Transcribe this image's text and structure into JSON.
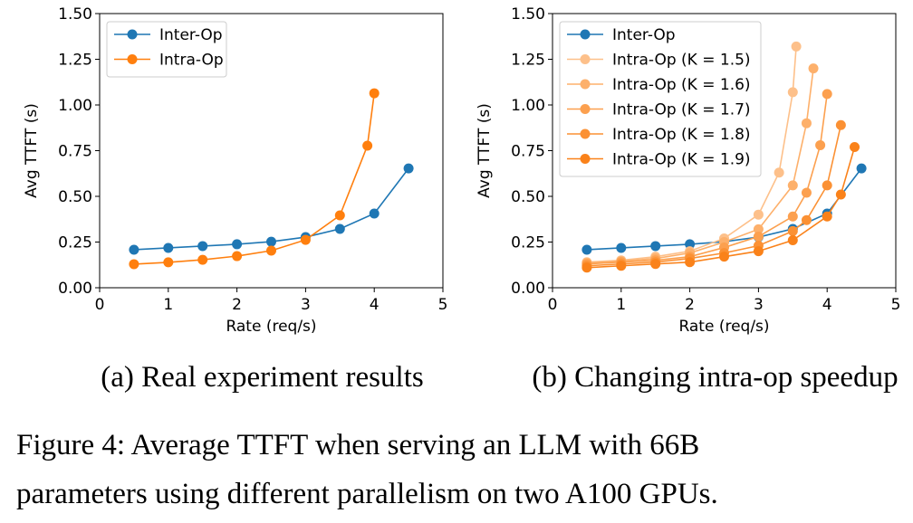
{
  "chart_data": [
    {
      "type": "line",
      "caption": "(a) Real experiment results",
      "xlabel": "Rate (req/s)",
      "ylabel": "Avg TTFT (s)",
      "xlim": [
        0,
        5
      ],
      "xticks": [
        0,
        1,
        2,
        3,
        4,
        5
      ],
      "ylim": [
        0,
        1.5
      ],
      "yticks": [
        {
          "value": 0,
          "label": "0.00"
        },
        {
          "value": 0.25,
          "label": "0.25"
        },
        {
          "value": 0.5,
          "label": "0.50"
        },
        {
          "value": 0.75,
          "label": "0.75"
        },
        {
          "value": 1,
          "label": "1.00"
        },
        {
          "value": 1.25,
          "label": "1.25"
        },
        {
          "value": 1.5,
          "label": "1.50"
        }
      ],
      "legend": "upper left",
      "series": [
        {
          "name": "Inter-Op",
          "color": "#1f77b4",
          "x": [
            0.5,
            1,
            1.5,
            2,
            2.5,
            3,
            3.5,
            4,
            4.5
          ],
          "values": [
            0.208,
            0.218,
            0.228,
            0.238,
            0.252,
            0.277,
            0.322,
            0.406,
            0.653
          ]
        },
        {
          "name": "Intra-Op",
          "color": "#ff7f0e",
          "x": [
            0.5,
            1,
            1.5,
            2,
            2.5,
            3,
            3.5,
            3.9,
            4
          ],
          "values": [
            0.129,
            0.139,
            0.153,
            0.173,
            0.203,
            0.262,
            0.396,
            0.777,
            1.064
          ]
        }
      ]
    },
    {
      "type": "line",
      "caption": "(b) Changing intra-op speedup",
      "xlabel": "Rate (req/s)",
      "ylabel": "Avg TTFT (s)",
      "xlim": [
        0,
        5
      ],
      "xticks": [
        0,
        1,
        2,
        3,
        4,
        5
      ],
      "ylim": [
        0,
        1.5
      ],
      "yticks": [
        {
          "value": 0,
          "label": "0.00"
        },
        {
          "value": 0.25,
          "label": "0.25"
        },
        {
          "value": 0.5,
          "label": "0.50"
        },
        {
          "value": 0.75,
          "label": "0.75"
        },
        {
          "value": 1,
          "label": "1.00"
        },
        {
          "value": 1.25,
          "label": "1.25"
        },
        {
          "value": 1.5,
          "label": "1.50"
        }
      ],
      "legend": "upper left",
      "series": [
        {
          "name": "Inter-Op",
          "color": "#1f77b4",
          "x": [
            0.5,
            1,
            1.5,
            2,
            2.5,
            3,
            3.5,
            4,
            4.5
          ],
          "values": [
            0.208,
            0.218,
            0.228,
            0.238,
            0.252,
            0.277,
            0.322,
            0.406,
            0.653
          ]
        },
        {
          "name": "Intra-Op (K = 1.5)",
          "color": "#fdc08a",
          "x": [
            0.5,
            1,
            1.5,
            2,
            2.5,
            3,
            3.3,
            3.5,
            3.55
          ],
          "values": [
            0.14,
            0.15,
            0.17,
            0.2,
            0.27,
            0.4,
            0.63,
            1.07,
            1.32
          ]
        },
        {
          "name": "Intra-Op (K = 1.6)",
          "color": "#fdb06b",
          "x": [
            0.5,
            1,
            1.5,
            2,
            2.5,
            3,
            3.5,
            3.7,
            3.8
          ],
          "values": [
            0.135,
            0.145,
            0.16,
            0.19,
            0.25,
            0.32,
            0.56,
            0.9,
            1.2
          ]
        },
        {
          "name": "Intra-Op (K = 1.7)",
          "color": "#fca04f",
          "x": [
            0.5,
            1,
            1.5,
            2,
            2.5,
            3,
            3.5,
            3.7,
            3.9,
            4
          ],
          "values": [
            0.13,
            0.14,
            0.15,
            0.17,
            0.22,
            0.28,
            0.39,
            0.52,
            0.78,
            1.06
          ]
        },
        {
          "name": "Intra-Op (K = 1.8)",
          "color": "#fb9134",
          "x": [
            0.5,
            1,
            1.5,
            2,
            2.5,
            3,
            3.5,
            3.7,
            4,
            4.2
          ],
          "values": [
            0.12,
            0.13,
            0.14,
            0.16,
            0.19,
            0.23,
            0.31,
            0.37,
            0.56,
            0.89
          ]
        },
        {
          "name": "Intra-Op (K = 1.9)",
          "color": "#fa821a",
          "x": [
            0.5,
            1,
            1.5,
            2,
            2.5,
            3,
            3.5,
            4,
            4.2,
            4.4
          ],
          "values": [
            0.11,
            0.12,
            0.13,
            0.14,
            0.17,
            0.2,
            0.26,
            0.39,
            0.51,
            0.77
          ]
        }
      ]
    }
  ],
  "figure_caption": [
    "Figure 4: Average TTFT when serving an LLM with 66B",
    "parameters using different parallelism on two A100 GPUs."
  ]
}
